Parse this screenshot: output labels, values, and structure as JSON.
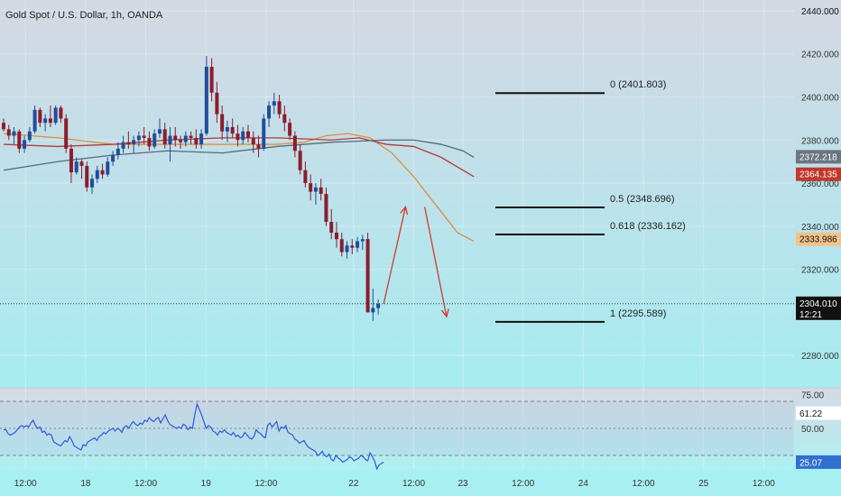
{
  "chart_data": {
    "type": "candlestick",
    "title": "Gold Spot / U.S. Dollar, 1h, OANDA",
    "price_axis": {
      "ylim": [
        2265,
        2445
      ],
      "ticks": [
        2440,
        2420,
        2400,
        2380,
        2360,
        2340,
        2320,
        2280
      ],
      "tick_labels": [
        "2440.000",
        "2420.000",
        "2400.000",
        "2380.000",
        "2360.000",
        "2340.000",
        "2320.000",
        "2280.000"
      ]
    },
    "price_badges": [
      {
        "label": "2372.218",
        "value": 2372.218,
        "color": "#6b7480"
      },
      {
        "label": "2364.135",
        "value": 2364.135,
        "color": "#c0392b"
      },
      {
        "label": "2333.986",
        "value": 2333.986,
        "color": "#f0c38a"
      },
      {
        "label": "2304.010",
        "value": 2304.01,
        "color": "#111111",
        "sublabel": "12:21"
      }
    ],
    "time_axis": {
      "labels": [
        {
          "label": "12:00",
          "slot": 8
        },
        {
          "label": "18",
          "slot": 30
        },
        {
          "label": "12:00",
          "slot": 52
        },
        {
          "label": "19",
          "slot": 74
        },
        {
          "label": "12:00",
          "slot": 96
        },
        {
          "label": "22",
          "slot": 128
        },
        {
          "label": "12:00",
          "slot": 150
        },
        {
          "label": "23",
          "slot": 168
        },
        {
          "label": "12:00",
          "slot": 190
        },
        {
          "label": "24",
          "slot": 212
        },
        {
          "label": "12:00",
          "slot": 234
        },
        {
          "label": "25",
          "slot": 256
        },
        {
          "label": "12:00",
          "slot": 278
        }
      ]
    },
    "fib_levels": [
      {
        "label": "0 (2401.803)",
        "value": 2401.803
      },
      {
        "label": "0.5 (2348.696)",
        "value": 2348.696
      },
      {
        "label": "0.618 (2336.162)",
        "value": 2336.162
      },
      {
        "label": "1 (2295.589)",
        "value": 2295.589
      }
    ],
    "rsi": {
      "ylim": [
        20,
        80
      ],
      "ticks": [
        75,
        50
      ],
      "tick_labels": [
        "75.00",
        "50.00"
      ],
      "badges": [
        {
          "label": "61.22",
          "value": 61.22,
          "color": "#ffffff"
        },
        {
          "label": "25.07",
          "value": 25.07,
          "color": "#2f6fd0"
        }
      ],
      "levels": [
        70,
        50,
        30
      ],
      "values": [
        49,
        49,
        46,
        45,
        46,
        47,
        49,
        51,
        52,
        51,
        52,
        51,
        54,
        56,
        52,
        50,
        51,
        47,
        48,
        45,
        46,
        45,
        40,
        39,
        38,
        37,
        39,
        41,
        40,
        44,
        41,
        37,
        36,
        35,
        34,
        38,
        37,
        40,
        41,
        42,
        43,
        41,
        44,
        45,
        47,
        46,
        48,
        49,
        50,
        48,
        50,
        49,
        47,
        51,
        52,
        50,
        53,
        55,
        53,
        52,
        54,
        53,
        56,
        55,
        58,
        56,
        55,
        57,
        58,
        54,
        57,
        60,
        56,
        53,
        52,
        51,
        50,
        51,
        50,
        53,
        52,
        49,
        51,
        50,
        60,
        68,
        64,
        60,
        55,
        50,
        52,
        51,
        48,
        47,
        45,
        48,
        47,
        49,
        47,
        46,
        45,
        47,
        44,
        45,
        43,
        44,
        47,
        45,
        43,
        42,
        44,
        49,
        47,
        46,
        44,
        43,
        52,
        54,
        51,
        53,
        55,
        48,
        51,
        50,
        52,
        47,
        46,
        45,
        42,
        41,
        39,
        40,
        41,
        38,
        36,
        35,
        34,
        33,
        30,
        31,
        33,
        30,
        29,
        31,
        27,
        26,
        30,
        28,
        27,
        25,
        26,
        27,
        29,
        28,
        26,
        27,
        28,
        30,
        29,
        27,
        26,
        32,
        29,
        26,
        20,
        23,
        24,
        25
      ]
    },
    "moving_averages": [
      {
        "color": "#d9903f",
        "slot_values": [
          [
            0,
            2383
          ],
          [
            20,
            2381
          ],
          [
            40,
            2378
          ],
          [
            60,
            2378
          ],
          [
            80,
            2378
          ],
          [
            100,
            2378
          ],
          [
            110,
            2379
          ],
          [
            118,
            2382
          ],
          [
            126,
            2383
          ],
          [
            134,
            2381
          ],
          [
            142,
            2374
          ],
          [
            150,
            2363
          ],
          [
            158,
            2350
          ],
          [
            166,
            2337
          ],
          [
            172,
            2333
          ]
        ]
      },
      {
        "color": "#b03a3a",
        "slot_values": [
          [
            0,
            2378
          ],
          [
            20,
            2377
          ],
          [
            40,
            2378
          ],
          [
            60,
            2380
          ],
          [
            80,
            2381
          ],
          [
            100,
            2381
          ],
          [
            120,
            2380
          ],
          [
            130,
            2381
          ],
          [
            140,
            2378
          ],
          [
            150,
            2377
          ],
          [
            160,
            2372
          ],
          [
            168,
            2366
          ],
          [
            172,
            2363
          ]
        ]
      },
      {
        "color": "#55697a",
        "slot_values": [
          [
            0,
            2366
          ],
          [
            20,
            2370
          ],
          [
            40,
            2373
          ],
          [
            60,
            2375
          ],
          [
            80,
            2374
          ],
          [
            100,
            2377
          ],
          [
            120,
            2379
          ],
          [
            140,
            2380
          ],
          [
            150,
            2380
          ],
          [
            160,
            2378
          ],
          [
            168,
            2375
          ],
          [
            172,
            2372
          ]
        ]
      }
    ],
    "candles": [
      [
        2388,
        2390,
        2384,
        2385
      ],
      [
        2385,
        2387,
        2380,
        2382
      ],
      [
        2382,
        2386,
        2378,
        2384
      ],
      [
        2384,
        2385,
        2374,
        2376
      ],
      [
        2376,
        2382,
        2374,
        2380
      ],
      [
        2380,
        2386,
        2379,
        2384
      ],
      [
        2384,
        2396,
        2383,
        2394
      ],
      [
        2394,
        2395,
        2386,
        2388
      ],
      [
        2388,
        2392,
        2384,
        2390
      ],
      [
        2390,
        2396,
        2386,
        2388
      ],
      [
        2388,
        2396,
        2387,
        2395
      ],
      [
        2395,
        2396,
        2388,
        2390
      ],
      [
        2390,
        2392,
        2374,
        2376
      ],
      [
        2376,
        2378,
        2360,
        2365
      ],
      [
        2365,
        2372,
        2364,
        2370
      ],
      [
        2370,
        2371,
        2362,
        2368
      ],
      [
        2368,
        2370,
        2356,
        2358
      ],
      [
        2358,
        2364,
        2355,
        2362
      ],
      [
        2362,
        2368,
        2360,
        2366
      ],
      [
        2366,
        2369,
        2362,
        2364
      ],
      [
        2364,
        2372,
        2363,
        2370
      ],
      [
        2370,
        2375,
        2368,
        2373
      ],
      [
        2373,
        2379,
        2371,
        2376
      ],
      [
        2376,
        2382,
        2374,
        2379
      ],
      [
        2379,
        2384,
        2376,
        2378
      ],
      [
        2378,
        2382,
        2374,
        2380
      ],
      [
        2380,
        2384,
        2377,
        2382
      ],
      [
        2382,
        2386,
        2378,
        2381
      ],
      [
        2381,
        2384,
        2375,
        2377
      ],
      [
        2377,
        2385,
        2376,
        2383
      ],
      [
        2383,
        2390,
        2381,
        2385
      ],
      [
        2385,
        2388,
        2376,
        2378
      ],
      [
        2378,
        2386,
        2370,
        2382
      ],
      [
        2382,
        2386,
        2377,
        2380
      ],
      [
        2380,
        2382,
        2376,
        2379
      ],
      [
        2379,
        2384,
        2377,
        2382
      ],
      [
        2382,
        2384,
        2378,
        2381
      ],
      [
        2381,
        2385,
        2376,
        2378
      ],
      [
        2378,
        2385,
        2376,
        2383
      ],
      [
        2383,
        2419,
        2382,
        2414
      ],
      [
        2414,
        2418,
        2398,
        2402
      ],
      [
        2402,
        2407,
        2388,
        2392
      ],
      [
        2392,
        2396,
        2380,
        2384
      ],
      [
        2384,
        2389,
        2379,
        2386
      ],
      [
        2386,
        2390,
        2381,
        2383
      ],
      [
        2383,
        2387,
        2377,
        2380
      ],
      [
        2380,
        2386,
        2378,
        2384
      ],
      [
        2384,
        2387,
        2379,
        2381
      ],
      [
        2381,
        2384,
        2374,
        2378
      ],
      [
        2378,
        2382,
        2372,
        2376
      ],
      [
        2376,
        2392,
        2375,
        2390
      ],
      [
        2390,
        2398,
        2386,
        2396
      ],
      [
        2396,
        2402,
        2392,
        2398
      ],
      [
        2398,
        2401,
        2390,
        2392
      ],
      [
        2392,
        2396,
        2384,
        2388
      ],
      [
        2388,
        2390,
        2380,
        2382
      ],
      [
        2382,
        2384,
        2372,
        2375
      ],
      [
        2375,
        2378,
        2364,
        2366
      ],
      [
        2366,
        2370,
        2358,
        2360
      ],
      [
        2360,
        2364,
        2352,
        2356
      ],
      [
        2356,
        2360,
        2350,
        2358
      ],
      [
        2358,
        2362,
        2352,
        2355
      ],
      [
        2355,
        2358,
        2340,
        2342
      ],
      [
        2342,
        2348,
        2334,
        2337
      ],
      [
        2337,
        2342,
        2330,
        2334
      ],
      [
        2334,
        2337,
        2326,
        2328
      ],
      [
        2328,
        2333,
        2325,
        2331
      ],
      [
        2331,
        2334,
        2327,
        2330
      ],
      [
        2330,
        2335,
        2328,
        2333
      ],
      [
        2333,
        2336,
        2329,
        2334
      ],
      [
        2334,
        2337,
        2300,
        2300
      ],
      [
        2300,
        2311,
        2296,
        2302
      ],
      [
        2302,
        2306,
        2299,
        2304
      ]
    ],
    "candle_slots": {
      "start": 0,
      "end": 137
    },
    "projection_arrows": [
      {
        "from": [
          139,
          2304
        ],
        "to": [
          147,
          2349
        ]
      },
      {
        "from": [
          154,
          2349
        ],
        "to": [
          162,
          2298
        ]
      }
    ]
  }
}
